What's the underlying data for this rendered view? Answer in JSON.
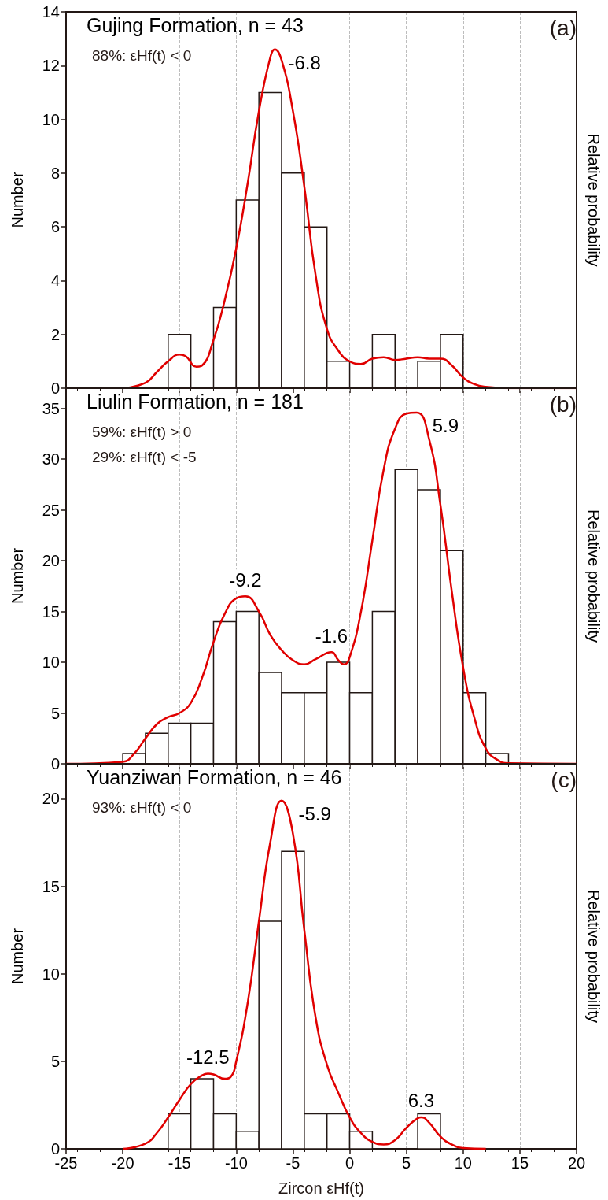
{
  "chart_data": [
    {
      "type": "histogram",
      "title": "Gujing Formation, n = 43",
      "subtitle": "(a)",
      "ylabel": "Number",
      "y2label": "Relative probability",
      "bins": [
        -16,
        -14,
        -12,
        -10,
        -8,
        -6,
        -4,
        -2,
        0,
        2,
        4,
        6,
        8,
        10
      ],
      "xlim": [
        -25,
        20
      ],
      "xticks": [
        -25,
        -20,
        -15,
        -10,
        -5,
        0,
        5,
        10,
        15,
        20
      ],
      "ylim": [
        0,
        14
      ],
      "yticks": [
        0,
        2,
        4,
        6,
        8,
        10,
        12,
        14
      ],
      "grid": "x",
      "tick_labels": "y",
      "annotations": [
        "88%: εHf(t) < 0",
        {
          "text": "-6.8",
          "x": -6.8,
          "y": 12.6
        }
      ],
      "series": [
        {
          "color": "#ffffff",
          "values": [
            2,
            0,
            3,
            7,
            11,
            8,
            6,
            1,
            0,
            2,
            0,
            1,
            2
          ]
        },
        {
          "type": "line",
          "color": "#e00000",
          "x": [
            -20,
            -18,
            -17,
            -16,
            -15,
            -14.5,
            -13.5,
            -13,
            -12,
            -11,
            -10,
            -9,
            -8,
            -7,
            -6.6,
            -6,
            -5,
            -4,
            -3,
            -2,
            -1,
            0,
            1,
            2,
            3,
            4,
            5,
            6,
            7,
            8,
            9,
            10,
            11,
            12,
            14,
            20
          ],
          "values": [
            0,
            0.2,
            0.6,
            1.0,
            1.25,
            1.2,
            0.8,
            0.85,
            1.8,
            3.3,
            5.2,
            7.6,
            10.3,
            12.3,
            12.6,
            12.2,
            10.3,
            7.5,
            4.2,
            2.2,
            1.4,
            1.0,
            0.9,
            1.1,
            1.15,
            1.05,
            1.1,
            1.15,
            1.1,
            1.1,
            0.85,
            0.4,
            0.15,
            0.05,
            0,
            0
          ]
        }
      ]
    },
    {
      "type": "histogram",
      "title": "Liulin Formation, n = 181",
      "subtitle": "(b)",
      "ylabel": "Number",
      "y2label": "Relative probability",
      "bins": [
        -20,
        -18,
        -16,
        -14,
        -12,
        -10,
        -8,
        -6,
        -4,
        -2,
        0,
        2,
        4,
        6,
        8,
        10,
        12,
        14
      ],
      "xlim": [
        -25,
        20
      ],
      "xticks": [
        -25,
        -20,
        -15,
        -10,
        -5,
        0,
        5,
        10,
        15,
        20
      ],
      "ylim": [
        0,
        37
      ],
      "yticks": [
        0,
        5,
        10,
        15,
        20,
        25,
        30,
        35
      ],
      "grid": "x",
      "tick_labels": "y",
      "annotations": [
        "59%: εHf(t) > 0",
        "29%: εHf(t) < -5",
        {
          "text": "-9.2",
          "x": -9.2,
          "y": 16.5
        },
        {
          "text": "-1.6",
          "x": -1.6,
          "y": 11.0
        },
        {
          "text": "5.9",
          "x": 5.9,
          "y": 34.6
        }
      ],
      "series": [
        {
          "color": "#ffffff",
          "values": [
            1,
            3,
            4,
            4,
            14,
            15,
            9,
            7,
            7,
            10,
            7,
            15,
            29,
            27,
            21,
            7,
            1
          ]
        },
        {
          "type": "line",
          "color": "#e00000",
          "x": [
            -25,
            -20,
            -19,
            -18,
            -17,
            -16,
            -15,
            -14,
            -13,
            -12,
            -11,
            -10,
            -9.2,
            -8,
            -7,
            -6,
            -5,
            -4,
            -3,
            -1.6,
            -1,
            -0.5,
            0,
            1,
            2,
            3,
            4,
            5,
            5.9,
            7,
            8,
            9,
            10,
            11,
            12,
            13,
            14,
            20
          ],
          "values": [
            0,
            0.2,
            1.0,
            2.5,
            3.9,
            4.6,
            5.0,
            6.0,
            8.5,
            12.0,
            14.8,
            16.3,
            16.5,
            15,
            12.7,
            11.2,
            10.2,
            9.8,
            10.3,
            11.0,
            10.2,
            9.8,
            10.5,
            15,
            22,
            29,
            33,
            34.5,
            34.6,
            32,
            25.5,
            17,
            9.5,
            4.5,
            1.5,
            0.4,
            0.05,
            0
          ]
        }
      ]
    },
    {
      "type": "histogram",
      "title": "Yuanziwan Formation, n = 46",
      "subtitle": "(c)",
      "xlabel": "Zircon εHf(t)",
      "ylabel": "Number",
      "y2label": "Relative probability",
      "bins": [
        -16,
        -14,
        -12,
        -10,
        -8,
        -6,
        -4,
        -2,
        0,
        2,
        4,
        6,
        8
      ],
      "xlim": [
        -25,
        20
      ],
      "xticks": [
        -25,
        -20,
        -15,
        -10,
        -5,
        0,
        5,
        10,
        15,
        20
      ],
      "ylim": [
        0,
        22
      ],
      "yticks": [
        0,
        5,
        10,
        15,
        20
      ],
      "grid": "x",
      "annotations": [
        "93%: εHf(t) < 0",
        {
          "text": "-12.5",
          "x": -12.5,
          "y": 4.3
        },
        {
          "text": "-5.9",
          "x": -5.9,
          "y": 19.9
        },
        {
          "text": "6.3",
          "x": 6.3,
          "y": 1.8
        }
      ],
      "series": [
        {
          "color": "#ffffff",
          "values": [
            2,
            4,
            2,
            1,
            13,
            17,
            2,
            2,
            1,
            0,
            0,
            2
          ]
        },
        {
          "type": "line",
          "color": "#e00000",
          "x": [
            -20,
            -18,
            -17,
            -16,
            -15,
            -14,
            -13,
            -12.5,
            -12,
            -11,
            -10.5,
            -10,
            -9,
            -8,
            -7,
            -6,
            -5,
            -4,
            -3,
            -2,
            -1,
            0,
            1,
            2,
            3,
            4,
            5,
            6,
            6.3,
            7,
            8,
            9,
            10,
            12
          ],
          "values": [
            0,
            0.3,
            0.9,
            1.8,
            2.8,
            3.7,
            4.2,
            4.3,
            4.25,
            4.0,
            4.1,
            5.0,
            8.3,
            13,
            17.5,
            19.9,
            18,
            12.5,
            7.5,
            4.8,
            3.2,
            1.8,
            0.9,
            0.4,
            0.25,
            0.5,
            1.2,
            1.75,
            1.8,
            1.5,
            0.7,
            0.25,
            0.05,
            0
          ]
        }
      ]
    }
  ]
}
